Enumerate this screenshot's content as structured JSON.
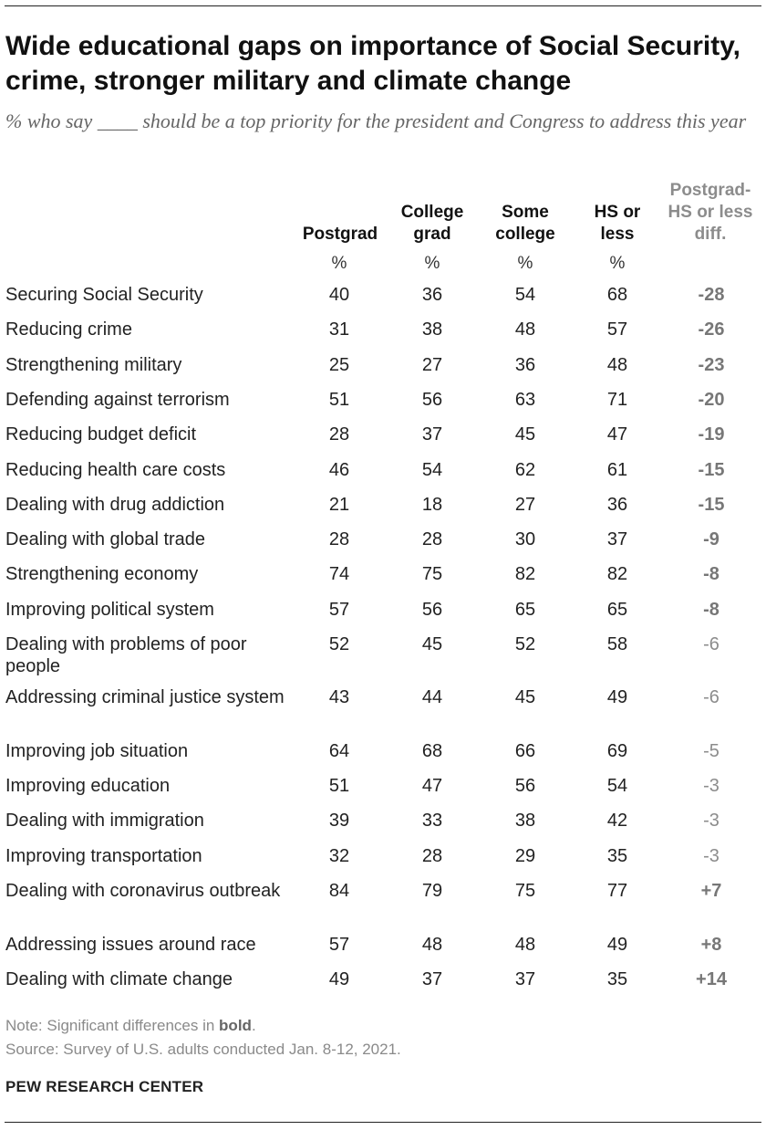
{
  "title": "Wide educational gaps on importance of Social Security, crime, stronger military and climate change",
  "subtitle": "% who say ____ should be a top priority for the president and Congress to address this year",
  "columns": {
    "postgrad": "Postgrad",
    "college_grad": "College grad",
    "some_college": "Some college",
    "hs_or_less": "HS or less",
    "diff": "Postgrad- HS or less diff.",
    "percent_symbol": "%"
  },
  "colors": {
    "diff_text": "#8c8c8c",
    "text": "#222222"
  },
  "chart_data": {
    "type": "table",
    "columns": [
      "Postgrad",
      "College grad",
      "Some college",
      "HS or less",
      "Postgrad- HS or less diff."
    ],
    "rows": [
      {
        "label": "Securing Social Security",
        "values": [
          "40",
          "36",
          "54",
          "68"
        ],
        "diff": "-28",
        "significant": true
      },
      {
        "label": "Reducing crime",
        "values": [
          "31",
          "38",
          "48",
          "57"
        ],
        "diff": "-26",
        "significant": true
      },
      {
        "label": "Strengthening military",
        "values": [
          "25",
          "27",
          "36",
          "48"
        ],
        "diff": "-23",
        "significant": true
      },
      {
        "label": "Defending against terrorism",
        "values": [
          "51",
          "56",
          "63",
          "71"
        ],
        "diff": "-20",
        "significant": true
      },
      {
        "label": "Reducing budget deficit",
        "values": [
          "28",
          "37",
          "45",
          "47"
        ],
        "diff": "-19",
        "significant": true
      },
      {
        "label": "Reducing health care costs",
        "values": [
          "46",
          "54",
          "62",
          "61"
        ],
        "diff": "-15",
        "significant": true
      },
      {
        "label": "Dealing with drug addiction",
        "values": [
          "21",
          "18",
          "27",
          "36"
        ],
        "diff": "-15",
        "significant": true
      },
      {
        "label": "Dealing with global trade",
        "values": [
          "28",
          "28",
          "30",
          "37"
        ],
        "diff": "-9",
        "significant": true
      },
      {
        "label": "Strengthening economy",
        "values": [
          "74",
          "75",
          "82",
          "82"
        ],
        "diff": "-8",
        "significant": true
      },
      {
        "label": "Improving political system",
        "values": [
          "57",
          "56",
          "65",
          "65"
        ],
        "diff": "-8",
        "significant": true
      },
      {
        "label": "Dealing with problems of poor people",
        "values": [
          "52",
          "45",
          "52",
          "58"
        ],
        "diff": "-6",
        "significant": false
      },
      {
        "label": "Addressing criminal justice system",
        "values": [
          "43",
          "44",
          "45",
          "49"
        ],
        "diff": "-6",
        "significant": false
      },
      {
        "label": "Improving job situation",
        "values": [
          "64",
          "68",
          "66",
          "69"
        ],
        "diff": "-5",
        "significant": false
      },
      {
        "label": "Improving education",
        "values": [
          "51",
          "47",
          "56",
          "54"
        ],
        "diff": "-3",
        "significant": false
      },
      {
        "label": "Dealing with immigration",
        "values": [
          "39",
          "33",
          "38",
          "42"
        ],
        "diff": "-3",
        "significant": false
      },
      {
        "label": "Improving transportation",
        "values": [
          "32",
          "28",
          "29",
          "35"
        ],
        "diff": "-3",
        "significant": false
      },
      {
        "label": "Dealing with coronavirus outbreak",
        "values": [
          "84",
          "79",
          "75",
          "77"
        ],
        "diff": "+7",
        "significant": true
      },
      {
        "label": "Addressing issues around race",
        "values": [
          "57",
          "48",
          "48",
          "49"
        ],
        "diff": "+8",
        "significant": true
      },
      {
        "label": "Dealing with climate change",
        "values": [
          "49",
          "37",
          "37",
          "35"
        ],
        "diff": "+14",
        "significant": true
      }
    ]
  },
  "footer": {
    "note_prefix": "Note: Significant differences in ",
    "note_bold": "bold",
    "note_suffix": ".",
    "source": "Source: Survey of U.S. adults conducted Jan. 8-12, 2021.",
    "brand": "PEW RESEARCH CENTER"
  }
}
